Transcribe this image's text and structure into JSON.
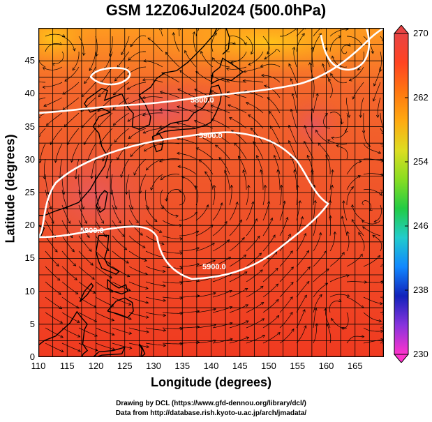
{
  "title": "GSM 12Z06Jul2024 (500.0hPa)",
  "xlabel": "Longitude (degrees)",
  "ylabel": "Latitude  (degrees)",
  "credits": [
    "Drawing by DCL (https://www.gfd-dennou.org/library/dcl/)",
    "Data from http://database.rish.kyoto-u.ac.jp/arch/jmadata/"
  ],
  "map": {
    "lon_range": [
      110,
      170
    ],
    "lat_range": [
      0,
      50
    ],
    "lon_ticks": [
      "110",
      "115",
      "120",
      "125",
      "130",
      "135",
      "140",
      "145",
      "150",
      "155",
      "160",
      "165"
    ],
    "lat_ticks": [
      "0",
      "5",
      "10",
      "15",
      "20",
      "25",
      "30",
      "35",
      "40",
      "45"
    ],
    "contours": [
      {
        "label": "5800.0",
        "value": 5800
      },
      {
        "label": "5900.0",
        "value": 5900
      },
      {
        "label": "5900.0",
        "value": 5900
      },
      {
        "label": "5900.0",
        "value": 5900
      }
    ]
  },
  "colorbar": {
    "min": 230,
    "max": 270,
    "ticks": [
      "270",
      "262",
      "254",
      "246",
      "238",
      "230"
    ],
    "colors": [
      "#ff33cc",
      "#8833dd",
      "#1122bb",
      "#1188ff",
      "#22cccc",
      "#22cc44",
      "#88dd22",
      "#dddd22",
      "#ffaa11",
      "#ff7711",
      "#ff4422",
      "#e84444"
    ]
  }
}
